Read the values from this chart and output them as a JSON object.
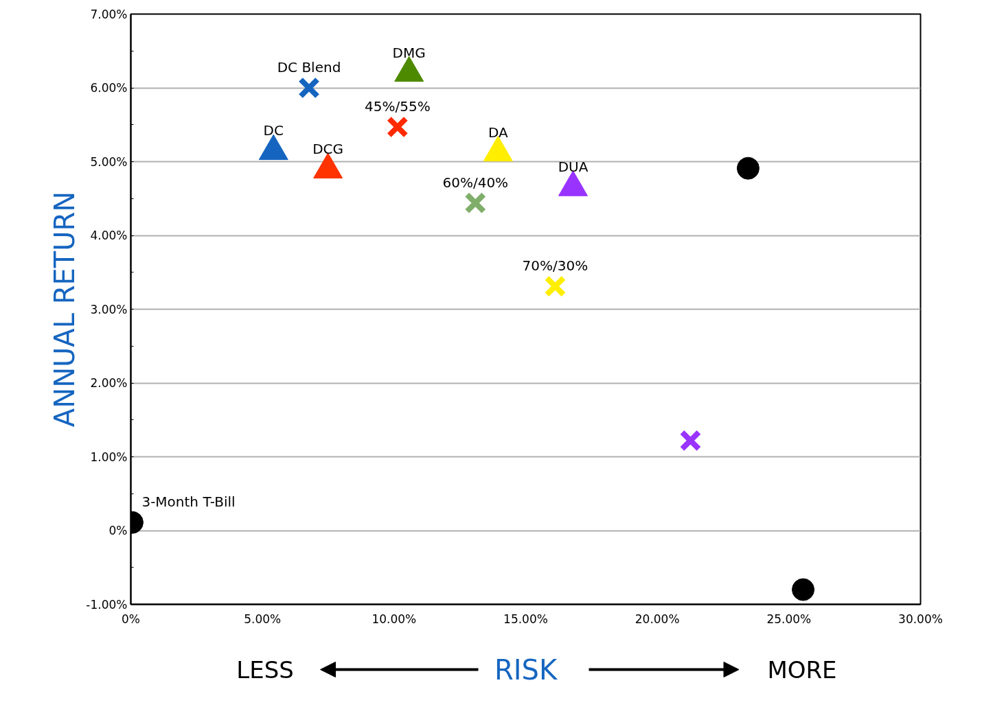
{
  "chart_data": {
    "type": "scatter",
    "xlabel": "RISK",
    "ylabel": "ANNUAL RETURN",
    "xlim": [
      0,
      30
    ],
    "ylim": [
      -1,
      7
    ],
    "xticks": [
      {
        "value": 0,
        "label": "0%"
      },
      {
        "value": 5,
        "label": "5.00%"
      },
      {
        "value": 10,
        "label": "10.00%"
      },
      {
        "value": 15,
        "label": "15.00%"
      },
      {
        "value": 20,
        "label": "20.00%"
      },
      {
        "value": 25,
        "label": "25.00%"
      },
      {
        "value": 30,
        "label": "30.00%"
      }
    ],
    "yticks": [
      {
        "value": -1,
        "label": "-1.00%"
      },
      {
        "value": 0,
        "label": "0%"
      },
      {
        "value": 1,
        "label": "1.00%"
      },
      {
        "value": 2,
        "label": "2.00%"
      },
      {
        "value": 3,
        "label": "3.00%"
      },
      {
        "value": 4,
        "label": "4.00%"
      },
      {
        "value": 5,
        "label": "5.00%"
      },
      {
        "value": 6,
        "label": "6.00%"
      },
      {
        "value": 7,
        "label": "7.00%"
      }
    ],
    "grid": "y",
    "annotations": [
      "LESS",
      "MORE"
    ],
    "series": [
      {
        "name": "3-Month T-Bill",
        "color": "#000000",
        "marker": "circle",
        "x": [
          0.05
        ],
        "values": [
          0.11
        ]
      },
      {
        "name": "DC Blend",
        "color": "#1565c0",
        "marker": "cross",
        "x": [
          6.77
        ],
        "values": [
          6.0
        ]
      },
      {
        "name": "DMG",
        "color": "#4e8a00",
        "marker": "triangle",
        "x": [
          10.57
        ],
        "values": [
          6.2
        ]
      },
      {
        "name": "45%/55%",
        "color": "#ff2a00",
        "marker": "cross",
        "x": [
          10.13
        ],
        "values": [
          5.47
        ]
      },
      {
        "name": "DC",
        "color": "#1565c0",
        "marker": "triangle",
        "x": [
          5.42
        ],
        "values": [
          5.14
        ]
      },
      {
        "name": "DCG",
        "color": "#ff3300",
        "marker": "triangle",
        "x": [
          7.49
        ],
        "values": [
          4.89
        ]
      },
      {
        "name": "DA",
        "color": "#ffee00",
        "marker": "triangle",
        "x": [
          13.95
        ],
        "values": [
          5.12
        ]
      },
      {
        "name": "DUA",
        "color": "#9933ff",
        "marker": "triangle",
        "x": [
          16.8
        ],
        "values": [
          4.65
        ]
      },
      {
        "name": "60%/40%",
        "color": "#7fae6a",
        "marker": "cross",
        "x": [
          13.09
        ],
        "values": [
          4.44
        ]
      },
      {
        "name": "70%/30%",
        "color": "#ffee00",
        "marker": "cross",
        "x": [
          16.12
        ],
        "values": [
          3.31
        ]
      },
      {
        "color": "#000000",
        "marker": "circle",
        "x": [
          23.45
        ],
        "values": [
          4.91
        ]
      },
      {
        "color": "#9933ff",
        "marker": "cross",
        "x": [
          21.26
        ],
        "values": [
          1.22
        ]
      },
      {
        "color": "#000000",
        "marker": "circle",
        "x": [
          25.54
        ],
        "values": [
          -0.8
        ]
      }
    ]
  }
}
